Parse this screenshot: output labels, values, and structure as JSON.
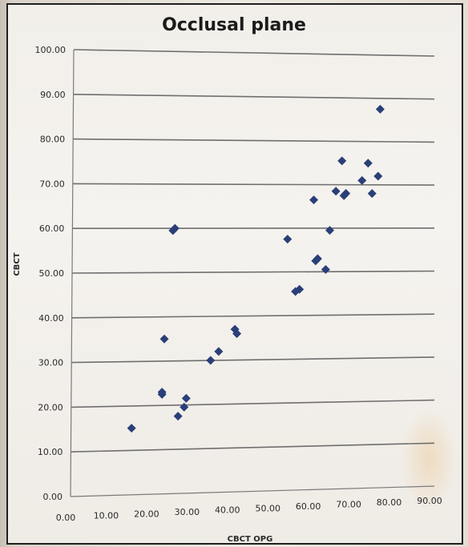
{
  "chart_data": {
    "type": "scatter",
    "title": "Occlusal plane",
    "xlabel": "CBCT OPG",
    "ylabel": "CBCT",
    "xlim": [
      0,
      90
    ],
    "ylim": [
      0,
      100
    ],
    "x_ticks": [
      "0.00",
      "10.00",
      "20.00",
      "30.00",
      "40.00",
      "50.00",
      "60.00",
      "70.00",
      "80.00",
      "90.00"
    ],
    "y_ticks": [
      "0.00",
      "10.00",
      "20.00",
      "30.00",
      "40.00",
      "50.00",
      "60.00",
      "70.00",
      "80.00",
      "90.00",
      "100.00"
    ],
    "grid": "horizontal",
    "legend": "none",
    "marker_color": "#2a3f78",
    "marker": "diamond",
    "points": [
      {
        "x": 15.0,
        "y": 15.0
      },
      {
        "x": 22.5,
        "y": 22.5
      },
      {
        "x": 22.5,
        "y": 23.0
      },
      {
        "x": 23.0,
        "y": 35.0
      },
      {
        "x": 25.0,
        "y": 59.5
      },
      {
        "x": 25.5,
        "y": 60.0
      },
      {
        "x": 26.5,
        "y": 17.5
      },
      {
        "x": 28.0,
        "y": 19.5
      },
      {
        "x": 28.5,
        "y": 21.5
      },
      {
        "x": 34.5,
        "y": 30.0
      },
      {
        "x": 36.5,
        "y": 32.0
      },
      {
        "x": 40.5,
        "y": 37.0
      },
      {
        "x": 41.0,
        "y": 36.0
      },
      {
        "x": 53.5,
        "y": 57.5
      },
      {
        "x": 55.5,
        "y": 45.5
      },
      {
        "x": 56.5,
        "y": 46.0
      },
      {
        "x": 60.0,
        "y": 66.5
      },
      {
        "x": 60.5,
        "y": 52.5
      },
      {
        "x": 61.0,
        "y": 53.0
      },
      {
        "x": 63.0,
        "y": 50.5
      },
      {
        "x": 64.0,
        "y": 59.5
      },
      {
        "x": 65.5,
        "y": 68.5
      },
      {
        "x": 67.0,
        "y": 75.5
      },
      {
        "x": 67.5,
        "y": 67.5
      },
      {
        "x": 68.0,
        "y": 68.0
      },
      {
        "x": 72.0,
        "y": 71.0
      },
      {
        "x": 73.5,
        "y": 75.0
      },
      {
        "x": 74.5,
        "y": 68.0
      },
      {
        "x": 76.0,
        "y": 72.0
      },
      {
        "x": 76.5,
        "y": 87.5
      }
    ]
  }
}
